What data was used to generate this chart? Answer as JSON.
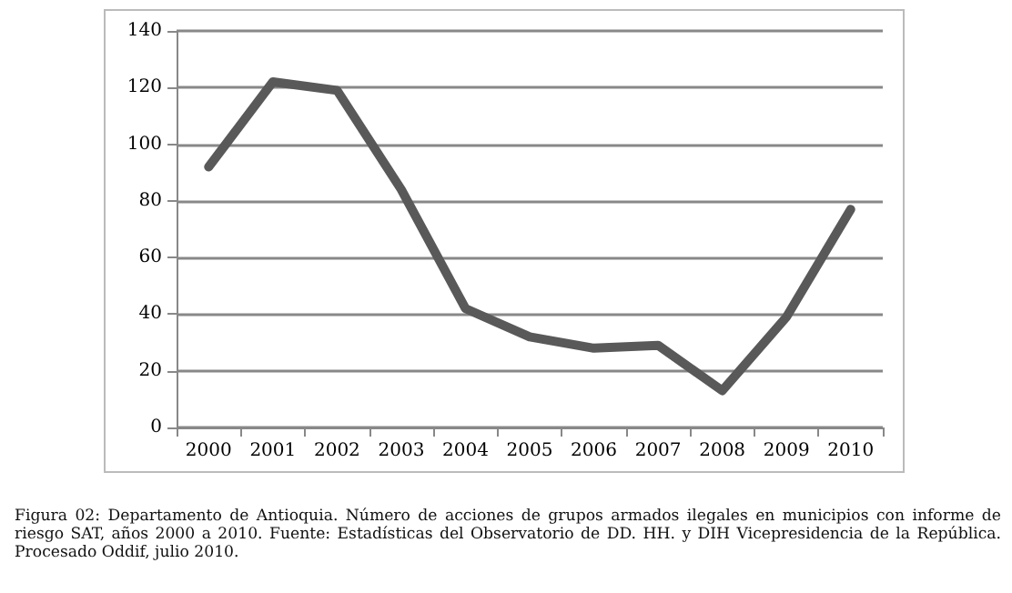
{
  "chart_data": {
    "type": "line",
    "categories": [
      "2000",
      "2001",
      "2002",
      "2003",
      "2004",
      "2005",
      "2006",
      "2007",
      "2008",
      "2009",
      "2010"
    ],
    "series": [
      {
        "color": "#595959",
        "values": [
          92,
          122,
          119,
          84,
          42,
          32,
          28,
          29,
          13,
          39,
          77
        ]
      }
    ],
    "ylim": [
      0,
      140
    ],
    "yticks": [
      0,
      20,
      40,
      60,
      80,
      100,
      120,
      140
    ],
    "grid": "y",
    "marker": "none",
    "line_style": "solid",
    "annotations": [
      "Figura 02: Departamento de Antioquia. Número de acciones de grupos armados ilegales en municipios con informe de riesgo SAT, años 2000 a 2010. Fuente: Estadísticas del Observatorio de DD. HH. y DIH Vicepresidencia de la República. Procesado Oddif, julio 2010."
    ]
  }
}
